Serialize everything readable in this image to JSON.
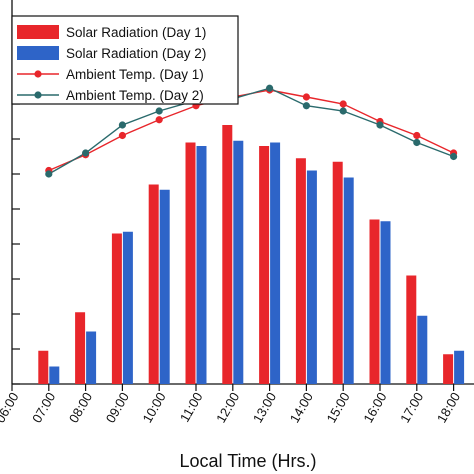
{
  "chart_data": {
    "type": "bar",
    "title": "",
    "xlabel": "Local Time (Hrs.)",
    "ylabel": "",
    "categories": [
      "07:00",
      "08:00",
      "09:00",
      "10:00",
      "11:00",
      "12:00",
      "13:00",
      "14:00",
      "15:00",
      "16:00",
      "17:00",
      "18:00"
    ],
    "x_tick_labels": [
      "06:00",
      "07:00",
      "08:00",
      "09:00",
      "10:00",
      "11:00",
      "12:00",
      "13:00",
      "14:00",
      "15:00",
      "16:00",
      "17:00",
      "18:00"
    ],
    "y_range": [
      0,
      10
    ],
    "bar_series": [
      {
        "name": "Solar Radiation (Day 1)",
        "color": "#e8262b",
        "values": [
          0.95,
          2.05,
          4.3,
          5.7,
          6.9,
          7.4,
          6.8,
          6.45,
          6.35,
          4.7,
          3.1,
          0.85
        ]
      },
      {
        "name": "Solar Radiation (Day 2)",
        "color": "#2e64c8",
        "values": [
          0.5,
          1.5,
          4.35,
          5.55,
          6.8,
          6.95,
          6.9,
          6.1,
          5.9,
          4.65,
          1.95,
          0.95
        ]
      }
    ],
    "line_series": [
      {
        "name": "Ambient Temp. (Day 1)",
        "color": "#e8262b",
        "marker": "circle",
        "values": [
          6.1,
          6.55,
          7.1,
          7.55,
          7.95,
          8.2,
          8.4,
          8.2,
          8.0,
          7.5,
          7.1,
          6.6
        ]
      },
      {
        "name": "Ambient Temp. (Day 2)",
        "color": "#2a6a6c",
        "marker": "circle",
        "values": [
          6.0,
          6.6,
          7.4,
          7.8,
          8.1,
          8.15,
          8.45,
          7.95,
          7.8,
          7.4,
          6.9,
          6.5
        ]
      }
    ],
    "legend_position": "top-left",
    "grid": false
  }
}
